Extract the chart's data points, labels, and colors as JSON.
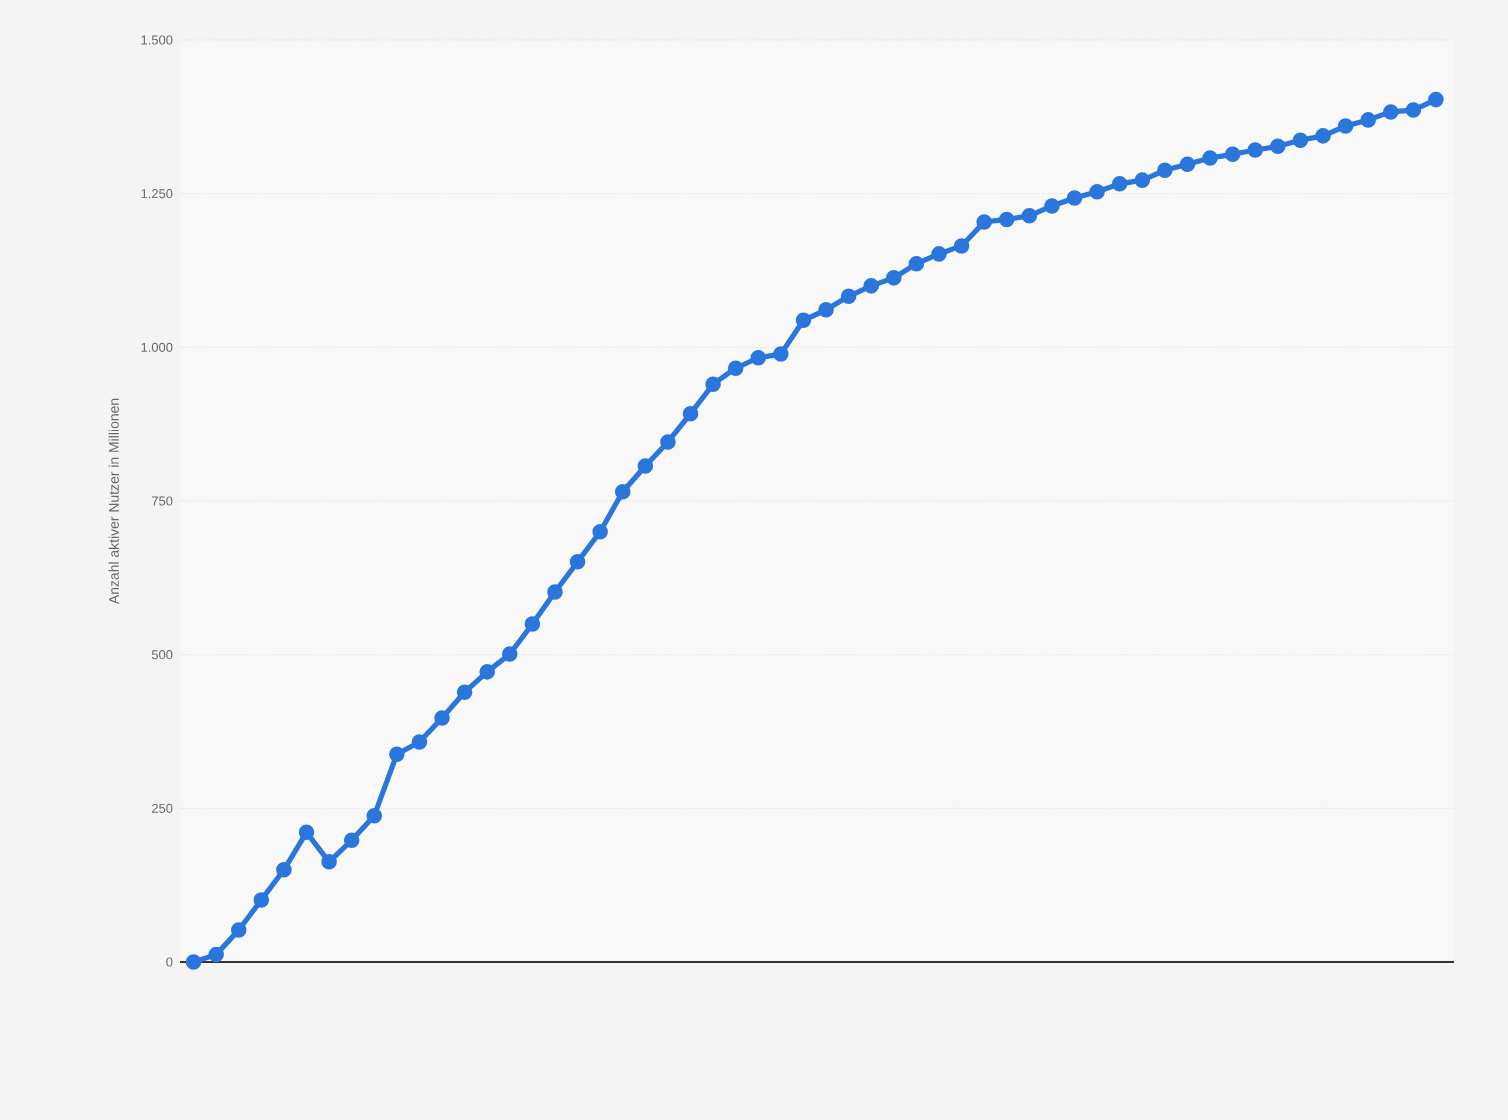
{
  "chart_data": {
    "type": "line",
    "ylabel": "Anzahl aktiver Nutzer in Millionen",
    "categories": [
      null,
      null,
      null,
      null,
      null,
      null,
      null,
      null,
      null,
      null,
      null,
      null,
      null,
      null,
      null,
      null,
      null,
      null,
      null,
      null,
      null,
      null,
      null,
      null,
      null,
      null,
      null,
      null,
      null,
      null,
      null,
      null,
      null,
      null,
      null,
      null,
      null,
      null,
      null,
      null,
      null,
      null,
      null,
      null,
      null,
      null,
      null,
      null,
      null,
      null,
      null,
      null,
      null,
      null,
      null,
      null
    ],
    "values": [
      0,
      12,
      52,
      101,
      150,
      211,
      163,
      198,
      238,
      338,
      358,
      397,
      439,
      472,
      501,
      550,
      602,
      651,
      700,
      765,
      807,
      846,
      892,
      940,
      966,
      983,
      989,
      1044,
      1061,
      1083,
      1100,
      1113,
      1136,
      1152,
      1165,
      1204,
      1208,
      1214,
      1230,
      1243,
      1253,
      1266,
      1272,
      1288,
      1298,
      1308,
      1314,
      1321,
      1327,
      1337,
      1344,
      1360,
      1370,
      1383,
      1386,
      1403
    ],
    "color": "#2a76dd",
    "ylim": [
      0,
      1500
    ],
    "yticks": [
      0,
      250,
      500,
      750,
      {
        "value": 1000,
        "label": "1.000"
      },
      {
        "value": 1250,
        "label": "1.250"
      },
      {
        "value": 1500,
        "label": "1.500"
      }
    ],
    "grid": "y",
    "marker": "circle",
    "line_style": "solid"
  }
}
